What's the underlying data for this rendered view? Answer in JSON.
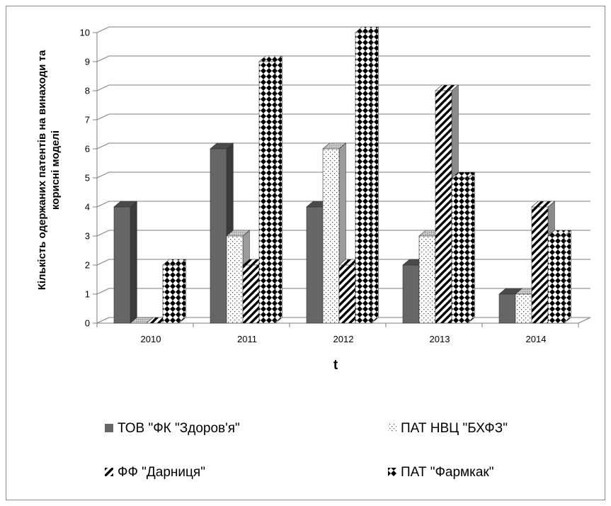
{
  "chart_data": {
    "type": "bar",
    "style": "3d-clustered-column",
    "categories": [
      "2010",
      "2011",
      "2012",
      "2013",
      "2014"
    ],
    "series": [
      {
        "name": "ТОВ \"ФК \"Здоров'я\"",
        "values": [
          4,
          6,
          4,
          2,
          1
        ],
        "fill": "solid",
        "color": "#666666"
      },
      {
        "name": "ПАТ НВЦ \"БХФЗ\"",
        "values": [
          0,
          3,
          6,
          3,
          1
        ],
        "fill": "dots",
        "color": "#999999"
      },
      {
        "name": "ФФ \"Дарниця\"",
        "values": [
          0,
          2,
          2,
          8,
          4
        ],
        "fill": "diagonal-stripes",
        "color": "#000000"
      },
      {
        "name": "ПАТ \"Фармкак\"",
        "values": [
          2,
          9,
          10,
          5,
          3
        ],
        "fill": "checker",
        "color": "#000000"
      }
    ],
    "xlabel": "t",
    "ylabel_lines": [
      "Кількість одержаних патентів на винаходи та",
      "корисні моделі"
    ],
    "ylim": [
      0,
      10
    ],
    "yticks": [
      "0",
      "1",
      "2",
      "3",
      "4",
      "5",
      "6",
      "7",
      "8",
      "9",
      "10"
    ],
    "grid": true,
    "legend_position": "bottom"
  }
}
